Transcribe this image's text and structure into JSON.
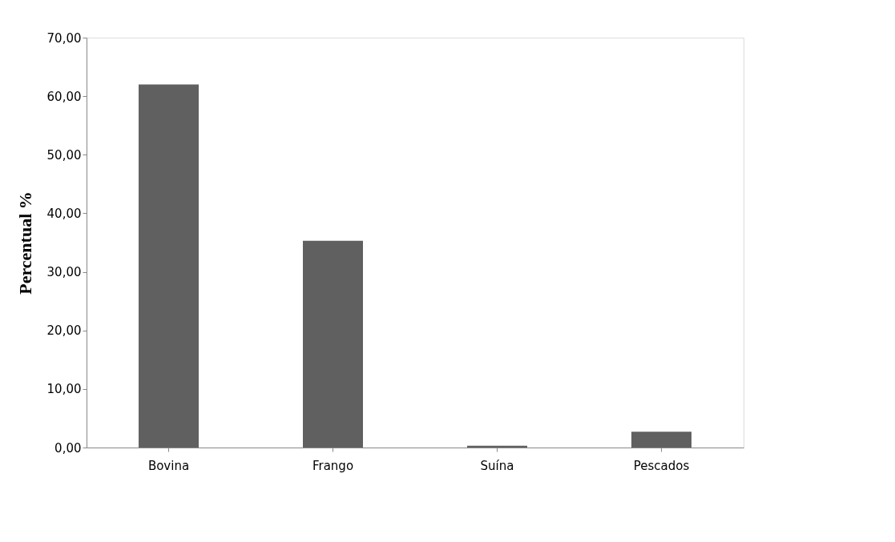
{
  "chart_data": {
    "type": "bar",
    "ylabel": "Percentual %",
    "categories": [
      "Bovina",
      "Frango",
      "Suína",
      "Pescados"
    ],
    "values": [
      62.0,
      35.3,
      0.3,
      2.7
    ],
    "color": "#606060",
    "ylim": [
      0,
      70
    ],
    "yticks": [
      {
        "value": 0,
        "label": "0,00"
      },
      {
        "value": 10,
        "label": "10,00"
      },
      {
        "value": 20,
        "label": "20,00"
      },
      {
        "value": 30,
        "label": "30,00"
      },
      {
        "value": 40,
        "label": "40,00"
      },
      {
        "value": 50,
        "label": "50,00"
      },
      {
        "value": 60,
        "label": "60,00"
      },
      {
        "value": 70,
        "label": "70,00"
      }
    ],
    "grid": false
  }
}
